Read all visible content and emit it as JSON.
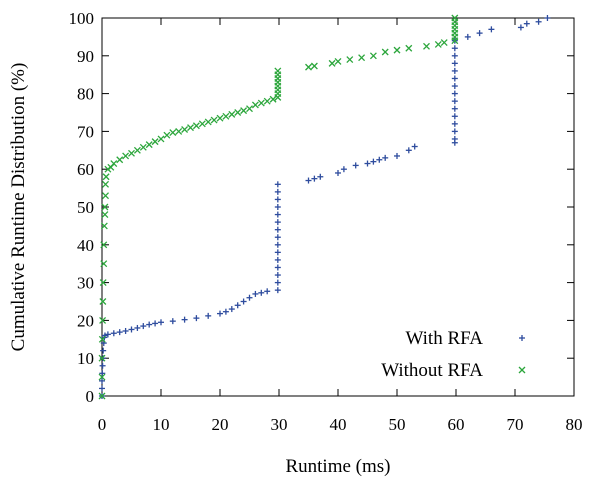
{
  "chart_data": {
    "type": "scatter",
    "xlabel": "Runtime (ms)",
    "ylabel": "Cumulative Runtime Distribution (%)",
    "xlim": [
      0,
      80
    ],
    "ylim": [
      0,
      100
    ],
    "xticks": [
      0,
      10,
      20,
      30,
      40,
      50,
      60,
      70,
      80
    ],
    "yticks": [
      0,
      10,
      20,
      30,
      40,
      50,
      60,
      70,
      80,
      90,
      100
    ],
    "grid": false,
    "legend_position": "bottom-right",
    "series": [
      {
        "name": "With RFA",
        "marker": "plus",
        "color": "#2e4c9e",
        "points": [
          [
            0,
            0
          ],
          [
            0,
            2
          ],
          [
            0,
            4
          ],
          [
            0.05,
            6
          ],
          [
            0.1,
            8
          ],
          [
            0.15,
            10
          ],
          [
            0.2,
            12
          ],
          [
            0.3,
            14
          ],
          [
            0.4,
            15.5
          ],
          [
            0.5,
            16
          ],
          [
            1,
            16.3
          ],
          [
            2,
            16.6
          ],
          [
            3,
            16.9
          ],
          [
            4,
            17.2
          ],
          [
            5,
            17.6
          ],
          [
            6,
            18.0
          ],
          [
            7,
            18.5
          ],
          [
            8,
            18.9
          ],
          [
            9,
            19.2
          ],
          [
            10,
            19.5
          ],
          [
            12,
            19.8
          ],
          [
            14,
            20.2
          ],
          [
            16,
            20.6
          ],
          [
            18,
            21.2
          ],
          [
            20,
            21.8
          ],
          [
            21,
            22.3
          ],
          [
            22,
            23.0
          ],
          [
            23,
            24.0
          ],
          [
            24,
            25.0
          ],
          [
            25,
            26.0
          ],
          [
            26,
            27.0
          ],
          [
            27,
            27.3
          ],
          [
            28,
            27.7
          ],
          [
            29.8,
            28
          ],
          [
            29.8,
            30
          ],
          [
            29.8,
            32
          ],
          [
            29.8,
            34
          ],
          [
            29.8,
            36
          ],
          [
            29.8,
            38
          ],
          [
            29.8,
            40
          ],
          [
            29.8,
            42
          ],
          [
            29.8,
            44
          ],
          [
            29.8,
            46
          ],
          [
            29.8,
            48
          ],
          [
            29.8,
            50
          ],
          [
            29.8,
            52
          ],
          [
            29.8,
            54
          ],
          [
            29.8,
            56
          ],
          [
            35,
            57
          ],
          [
            36,
            57.5
          ],
          [
            37,
            58
          ],
          [
            40,
            59
          ],
          [
            41,
            60
          ],
          [
            43,
            61
          ],
          [
            45,
            61.5
          ],
          [
            46,
            62
          ],
          [
            47,
            62.5
          ],
          [
            48,
            63
          ],
          [
            50,
            63.5
          ],
          [
            52,
            65
          ],
          [
            53,
            66
          ],
          [
            59.8,
            67
          ],
          [
            59.8,
            68
          ],
          [
            59.8,
            70
          ],
          [
            59.8,
            72
          ],
          [
            59.8,
            74
          ],
          [
            59.8,
            76
          ],
          [
            59.8,
            78
          ],
          [
            59.8,
            80
          ],
          [
            59.8,
            82
          ],
          [
            59.8,
            84
          ],
          [
            59.8,
            86
          ],
          [
            59.8,
            88
          ],
          [
            59.8,
            90
          ],
          [
            59.8,
            92
          ],
          [
            59.8,
            94
          ],
          [
            62,
            95
          ],
          [
            64,
            96
          ],
          [
            66,
            97
          ],
          [
            71,
            97.5
          ],
          [
            72,
            98.5
          ],
          [
            74,
            99
          ],
          [
            75.5,
            100
          ]
        ]
      },
      {
        "name": "Without RFA",
        "marker": "cross",
        "color": "#2ca63c",
        "points": [
          [
            0,
            0
          ],
          [
            0,
            5
          ],
          [
            0,
            10
          ],
          [
            0.05,
            15
          ],
          [
            0.1,
            20
          ],
          [
            0.15,
            25
          ],
          [
            0.2,
            30
          ],
          [
            0.3,
            35
          ],
          [
            0.3,
            40
          ],
          [
            0.4,
            45
          ],
          [
            0.5,
            48
          ],
          [
            0.5,
            50
          ],
          [
            0.6,
            53
          ],
          [
            0.6,
            56
          ],
          [
            0.7,
            58
          ],
          [
            1,
            60
          ],
          [
            1.5,
            60.5
          ],
          [
            2,
            61.5
          ],
          [
            3,
            62.5
          ],
          [
            4,
            63.5
          ],
          [
            5,
            64.2
          ],
          [
            6,
            65
          ],
          [
            7,
            65.8
          ],
          [
            8,
            66.5
          ],
          [
            9,
            67.3
          ],
          [
            10,
            68
          ],
          [
            11,
            69
          ],
          [
            12,
            69.7
          ],
          [
            13,
            70
          ],
          [
            14,
            70.5
          ],
          [
            15,
            71
          ],
          [
            16,
            71.5
          ],
          [
            17,
            72
          ],
          [
            18,
            72.5
          ],
          [
            19,
            73
          ],
          [
            20,
            73.5
          ],
          [
            21,
            74
          ],
          [
            22,
            74.5
          ],
          [
            23,
            75
          ],
          [
            24,
            75.5
          ],
          [
            25,
            76
          ],
          [
            26,
            77
          ],
          [
            27,
            77.5
          ],
          [
            28,
            78
          ],
          [
            29,
            78.5
          ],
          [
            29.8,
            79
          ],
          [
            29.8,
            80
          ],
          [
            29.8,
            81
          ],
          [
            29.8,
            82
          ],
          [
            29.8,
            83
          ],
          [
            29.8,
            84
          ],
          [
            29.8,
            85
          ],
          [
            29.8,
            86
          ],
          [
            35,
            87
          ],
          [
            36,
            87.3
          ],
          [
            39,
            88
          ],
          [
            40,
            88.5
          ],
          [
            42,
            89
          ],
          [
            44,
            89.5
          ],
          [
            46,
            90
          ],
          [
            48,
            91
          ],
          [
            50,
            91.5
          ],
          [
            52,
            92
          ],
          [
            55,
            92.5
          ],
          [
            57,
            93
          ],
          [
            58,
            93.5
          ],
          [
            59.8,
            94
          ],
          [
            59.8,
            95
          ],
          [
            59.8,
            96
          ],
          [
            59.8,
            97
          ],
          [
            59.8,
            98
          ],
          [
            59.8,
            99
          ],
          [
            59.8,
            100
          ]
        ]
      }
    ]
  }
}
